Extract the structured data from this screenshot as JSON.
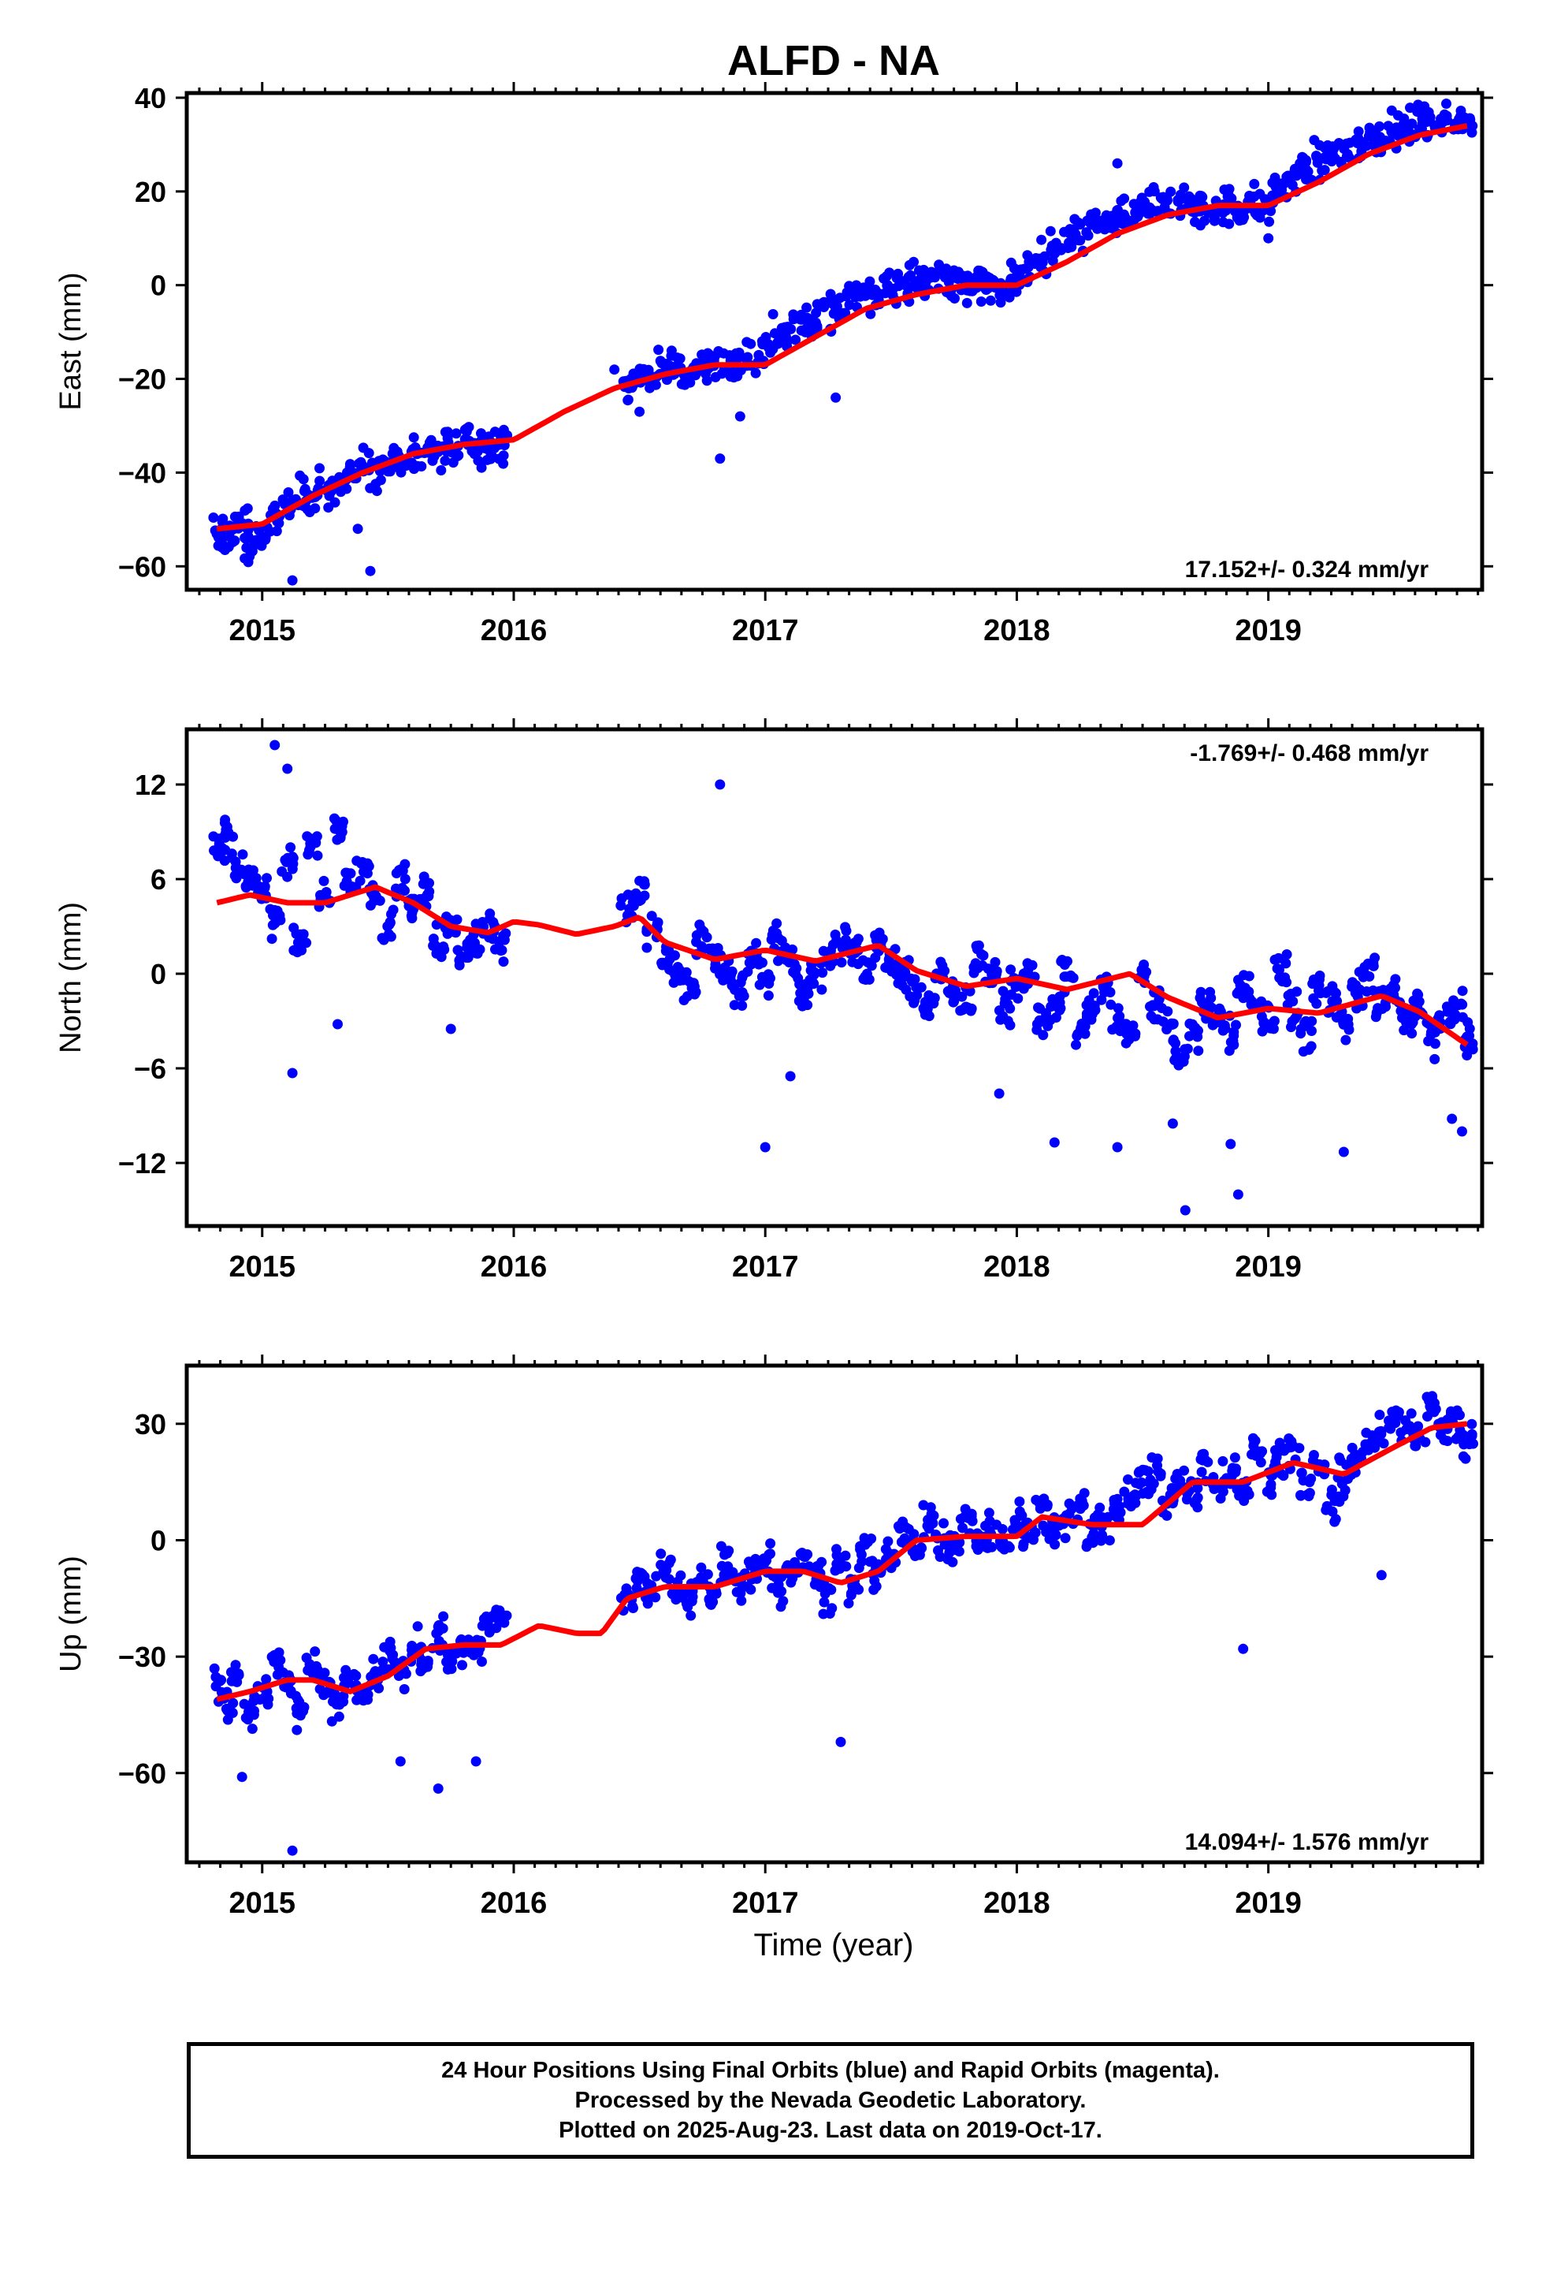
{
  "title": "ALFD - NA",
  "xlabel": "Time (year)",
  "footer": {
    "line1": "24 Hour Positions Using Final Orbits (blue) and Rapid Orbits (magenta).",
    "line2": "Processed by the Nevada Geodetic Laboratory.",
    "line3": "Plotted on 2025-Aug-23. Last data on 2019-Oct-17."
  },
  "colors": {
    "points": "#0000ff",
    "fit": "#ff0000",
    "axis": "#000000"
  },
  "chart_data": [
    {
      "type": "scatter",
      "name": "east",
      "ylabel": "East (mm)",
      "rate_label": "17.152+/- 0.324 mm/yr",
      "rate_position": "bottom-right",
      "xlim": [
        2014.7,
        2019.85
      ],
      "ylim": [
        -65,
        41
      ],
      "yticks": [
        40,
        20,
        0,
        -20,
        -40,
        -60
      ],
      "xticks": [
        2015,
        2016,
        2017,
        2018,
        2019
      ],
      "trend_mm_per_yr": 17.152,
      "points_x": [
        2014.83,
        2014.85,
        2014.88,
        2014.92,
        2014.95,
        2015.0,
        2015.05,
        2015.1,
        2015.15,
        2015.2,
        2015.25,
        2015.3,
        2015.35,
        2015.4,
        2015.45,
        2015.5,
        2015.55,
        2015.6,
        2015.65,
        2015.7,
        2015.75,
        2015.8,
        2015.85,
        2015.9,
        2015.95,
        2016.45,
        2016.5,
        2016.55,
        2016.6,
        2016.65,
        2016.7,
        2016.75,
        2016.8,
        2016.85,
        2016.9,
        2016.95,
        2017.0,
        2017.05,
        2017.1,
        2017.15,
        2017.2,
        2017.25,
        2017.3,
        2017.35,
        2017.4,
        2017.45,
        2017.5,
        2017.55,
        2017.6,
        2017.65,
        2017.7,
        2017.75,
        2017.8,
        2017.85,
        2017.9,
        2017.95,
        2018.0,
        2018.05,
        2018.1,
        2018.15,
        2018.2,
        2018.25,
        2018.3,
        2018.35,
        2018.4,
        2018.45,
        2018.5,
        2018.55,
        2018.6,
        2018.65,
        2018.7,
        2018.75,
        2018.8,
        2018.85,
        2018.9,
        2018.95,
        2019.0,
        2019.05,
        2019.1,
        2019.15,
        2019.2,
        2019.25,
        2019.3,
        2019.35,
        2019.4,
        2019.45,
        2019.5,
        2019.55,
        2019.6,
        2019.65,
        2019.7,
        2019.75,
        2019.79
      ],
      "points_y": [
        -52,
        -55,
        -53,
        -51,
        -56,
        -52,
        -50,
        -47,
        -45,
        -46,
        -44,
        -42,
        -41,
        -39,
        -40,
        -38,
        -37,
        -36,
        -35,
        -36,
        -34,
        -33,
        -35,
        -36,
        -34,
        -21,
        -20,
        -19,
        -18,
        -17,
        -18,
        -17,
        -16,
        -18,
        -17,
        -15,
        -13,
        -11,
        -9,
        -8,
        -7,
        -5,
        -4,
        -3,
        -2,
        -2,
        -1,
        0,
        1,
        1,
        2,
        1,
        0,
        0,
        1,
        0,
        2,
        4,
        6,
        8,
        10,
        11,
        12,
        13,
        14,
        15,
        16,
        17,
        18,
        17,
        18,
        17,
        16,
        17,
        16,
        17,
        18,
        21,
        23,
        25,
        27,
        28,
        29,
        30,
        31,
        31,
        33,
        34,
        35,
        35,
        35,
        34,
        34
      ],
      "outliers_x": [
        2015.12,
        2015.43,
        2015.38,
        2016.4,
        2016.5,
        2016.82,
        2016.9,
        2017.28,
        2018.4,
        2019.0
      ],
      "outliers_y": [
        -63,
        -61,
        -52,
        -18,
        -27,
        -37,
        -28,
        -24,
        26,
        10
      ],
      "fit_x": [
        2014.82,
        2015.0,
        2015.2,
        2015.4,
        2015.6,
        2015.8,
        2016.0,
        2016.2,
        2016.4,
        2016.6,
        2016.8,
        2017.0,
        2017.2,
        2017.4,
        2017.6,
        2017.8,
        2018.0,
        2018.2,
        2018.4,
        2018.6,
        2018.8,
        2019.0,
        2019.2,
        2019.4,
        2019.6,
        2019.79
      ],
      "fit_y": [
        -52,
        -51,
        -45,
        -40,
        -36,
        -34,
        -33,
        -27,
        -22,
        -19,
        -17,
        -17,
        -11,
        -5,
        -2,
        0,
        0,
        5,
        11,
        15,
        17,
        17,
        22,
        28,
        32,
        34
      ]
    },
    {
      "type": "scatter",
      "name": "north",
      "ylabel": "North (mm)",
      "rate_label": "-1.769+/- 0.468 mm/yr",
      "rate_position": "top-right",
      "xlim": [
        2014.7,
        2019.85
      ],
      "ylim": [
        -16,
        15.5
      ],
      "yticks": [
        12,
        6,
        0,
        -6,
        -12
      ],
      "xticks": [
        2015,
        2016,
        2017,
        2018,
        2019
      ],
      "trend_mm_per_yr": -1.769,
      "points_x": [
        2014.83,
        2014.86,
        2014.9,
        2014.95,
        2015.0,
        2015.05,
        2015.1,
        2015.15,
        2015.2,
        2015.25,
        2015.3,
        2015.35,
        2015.4,
        2015.45,
        2015.5,
        2015.55,
        2015.6,
        2015.65,
        2015.7,
        2015.75,
        2015.8,
        2015.85,
        2015.9,
        2015.95,
        2016.45,
        2016.5,
        2016.55,
        2016.6,
        2016.65,
        2016.7,
        2016.75,
        2016.8,
        2016.85,
        2016.9,
        2016.95,
        2017.0,
        2017.05,
        2017.1,
        2017.15,
        2017.2,
        2017.25,
        2017.3,
        2017.35,
        2017.4,
        2017.45,
        2017.5,
        2017.55,
        2017.6,
        2017.65,
        2017.7,
        2017.75,
        2017.8,
        2017.85,
        2017.9,
        2017.95,
        2018.0,
        2018.05,
        2018.1,
        2018.15,
        2018.2,
        2018.25,
        2018.3,
        2018.35,
        2018.4,
        2018.45,
        2018.5,
        2018.55,
        2018.6,
        2018.65,
        2018.7,
        2018.75,
        2018.8,
        2018.85,
        2018.9,
        2018.95,
        2019.0,
        2019.05,
        2019.1,
        2019.15,
        2019.2,
        2019.25,
        2019.3,
        2019.35,
        2019.4,
        2019.45,
        2019.5,
        2019.55,
        2019.6,
        2019.65,
        2019.7,
        2019.75,
        2019.79
      ],
      "points_y": [
        8,
        9,
        7,
        6,
        5,
        3,
        7,
        2,
        8,
        5,
        9,
        6,
        7,
        5,
        3,
        6,
        4,
        5,
        2,
        3,
        1,
        2,
        3,
        2,
        4,
        5,
        3,
        1,
        0,
        -1,
        2,
        1,
        0,
        -1,
        1,
        0,
        2,
        1,
        -1,
        0,
        1,
        2,
        1,
        0,
        2,
        1,
        0,
        -1,
        -2,
        0,
        -1,
        -2,
        1,
        0,
        -2,
        -1,
        0,
        -3,
        -2,
        0,
        -4,
        -2,
        -1,
        -3,
        -4,
        0,
        -2,
        -3,
        -5,
        -4,
        -2,
        -3,
        -4,
        -1,
        -2,
        -3,
        0,
        -2,
        -4,
        -1,
        -2,
        -3,
        -1,
        0,
        -2,
        -1,
        -3,
        -2,
        -4,
        -3,
        -2,
        -4
      ],
      "outliers_x": [
        2015.05,
        2015.1,
        2015.12,
        2015.3,
        2015.75,
        2016.82,
        2017.0,
        2017.1,
        2017.93,
        2018.15,
        2018.4,
        2018.62,
        2018.67,
        2018.85,
        2018.88,
        2019.3,
        2019.73,
        2019.77
      ],
      "outliers_y": [
        14.5,
        13,
        -6.3,
        -3.2,
        -3.5,
        12,
        -11,
        -6.5,
        -7.6,
        -10.7,
        -11,
        -9.5,
        -15,
        -10.8,
        -14,
        -11.3,
        -9.2,
        -10
      ],
      "fit_x": [
        2014.82,
        2014.95,
        2015.1,
        2015.25,
        2015.45,
        2015.6,
        2015.75,
        2015.9,
        2016.0,
        2016.1,
        2016.25,
        2016.4,
        2016.5,
        2016.6,
        2016.8,
        2017.0,
        2017.2,
        2017.45,
        2017.6,
        2017.8,
        2018.0,
        2018.2,
        2018.45,
        2018.6,
        2018.8,
        2019.0,
        2019.2,
        2019.45,
        2019.6,
        2019.79
      ],
      "fit_y": [
        4.5,
        5,
        4.5,
        4.5,
        5.5,
        4.5,
        3,
        2.6,
        3.3,
        3.1,
        2.5,
        3,
        3.6,
        2,
        0.9,
        1.5,
        0.8,
        1.8,
        0.2,
        -0.8,
        -0.3,
        -1,
        0,
        -1.5,
        -2.8,
        -2.2,
        -2.5,
        -1.4,
        -2.4,
        -4.5
      ]
    },
    {
      "type": "scatter",
      "name": "up",
      "ylabel": "Up (mm)",
      "rate_label": "14.094+/- 1.576 mm/yr",
      "rate_position": "bottom-right",
      "xlim": [
        2014.7,
        2019.85
      ],
      "ylim": [
        -83,
        45
      ],
      "yticks": [
        30,
        0,
        -30,
        -60
      ],
      "xticks": [
        2015,
        2016,
        2017,
        2018,
        2019
      ],
      "trend_mm_per_yr": 14.094,
      "points_x": [
        2014.83,
        2014.86,
        2014.9,
        2014.95,
        2015.0,
        2015.05,
        2015.1,
        2015.15,
        2015.2,
        2015.25,
        2015.3,
        2015.35,
        2015.4,
        2015.45,
        2015.5,
        2015.55,
        2015.6,
        2015.65,
        2015.7,
        2015.75,
        2015.8,
        2015.85,
        2015.9,
        2015.95,
        2016.45,
        2016.5,
        2016.55,
        2016.6,
        2016.65,
        2016.7,
        2016.75,
        2016.8,
        2016.85,
        2016.9,
        2016.95,
        2017.0,
        2017.05,
        2017.1,
        2017.15,
        2017.2,
        2017.25,
        2017.3,
        2017.35,
        2017.4,
        2017.45,
        2017.5,
        2017.55,
        2017.6,
        2017.65,
        2017.7,
        2017.75,
        2017.8,
        2017.85,
        2017.9,
        2017.95,
        2018.0,
        2018.05,
        2018.1,
        2018.15,
        2018.2,
        2018.25,
        2018.3,
        2018.35,
        2018.4,
        2018.45,
        2018.5,
        2018.55,
        2018.6,
        2018.65,
        2018.7,
        2018.75,
        2018.8,
        2018.85,
        2018.9,
        2018.95,
        2019.0,
        2019.05,
        2019.1,
        2019.15,
        2019.2,
        2019.25,
        2019.3,
        2019.35,
        2019.4,
        2019.45,
        2019.5,
        2019.55,
        2019.6,
        2019.65,
        2019.7,
        2019.75,
        2019.79
      ],
      "points_y": [
        -38,
        -42,
        -35,
        -45,
        -40,
        -30,
        -36,
        -44,
        -32,
        -38,
        -42,
        -35,
        -40,
        -36,
        -30,
        -34,
        -28,
        -32,
        -25,
        -30,
        -26,
        -28,
        -22,
        -20,
        -15,
        -10,
        -14,
        -8,
        -12,
        -16,
        -10,
        -14,
        -6,
        -12,
        -9,
        -5,
        -12,
        -8,
        -4,
        -10,
        -15,
        -6,
        -12,
        -2,
        -8,
        -4,
        2,
        -3,
        5,
        0,
        -2,
        4,
        -1,
        2,
        0,
        5,
        2,
        8,
        3,
        6,
        10,
        2,
        5,
        8,
        12,
        15,
        18,
        10,
        16,
        12,
        20,
        15,
        18,
        12,
        22,
        16,
        20,
        24,
        14,
        18,
        10,
        15,
        20,
        25,
        28,
        32,
        30,
        26,
        34,
        28,
        30,
        26
      ],
      "outliers_x": [
        2014.92,
        2015.12,
        2015.55,
        2015.7,
        2015.85,
        2017.3,
        2018.9,
        2019.45
      ],
      "outliers_y": [
        -61,
        -80,
        -57,
        -64,
        -57,
        -52,
        -28,
        -9
      ],
      "fit_x": [
        2014.82,
        2014.95,
        2015.1,
        2015.2,
        2015.35,
        2015.5,
        2015.65,
        2015.8,
        2015.95,
        2016.1,
        2016.25,
        2016.35,
        2016.45,
        2016.6,
        2016.8,
        2017.0,
        2017.15,
        2017.3,
        2017.45,
        2017.6,
        2017.8,
        2018.0,
        2018.1,
        2018.3,
        2018.5,
        2018.7,
        2018.9,
        2019.1,
        2019.3,
        2019.5,
        2019.65,
        2019.79
      ],
      "fit_y": [
        -41,
        -39,
        -36,
        -36,
        -39,
        -35,
        -28,
        -27,
        -27,
        -22,
        -24,
        -24,
        -15,
        -12,
        -12,
        -8,
        -8,
        -11,
        -8,
        0,
        1,
        1,
        6,
        4,
        4,
        15,
        15,
        20,
        17,
        24,
        29,
        30
      ]
    }
  ]
}
